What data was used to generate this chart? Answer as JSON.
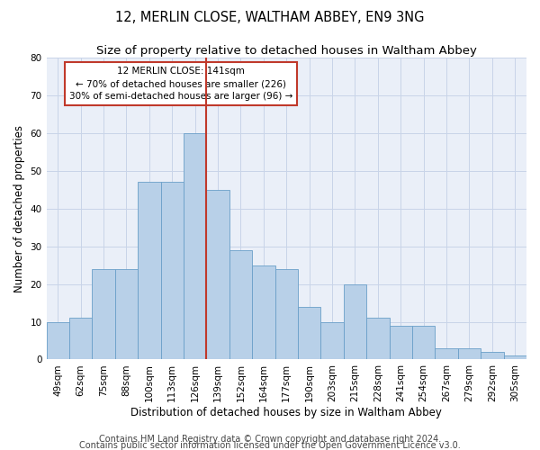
{
  "title": "12, MERLIN CLOSE, WALTHAM ABBEY, EN9 3NG",
  "subtitle": "Size of property relative to detached houses in Waltham Abbey",
  "xlabel": "Distribution of detached houses by size in Waltham Abbey",
  "ylabel": "Number of detached properties",
  "categories": [
    "49sqm",
    "62sqm",
    "75sqm",
    "88sqm",
    "100sqm",
    "113sqm",
    "126sqm",
    "139sqm",
    "152sqm",
    "164sqm",
    "177sqm",
    "190sqm",
    "203sqm",
    "215sqm",
    "228sqm",
    "241sqm",
    "254sqm",
    "267sqm",
    "279sqm",
    "292sqm",
    "305sqm"
  ],
  "values": [
    10,
    11,
    24,
    24,
    47,
    47,
    60,
    45,
    29,
    25,
    24,
    14,
    10,
    20,
    11,
    9,
    9,
    3,
    3,
    2,
    1
  ],
  "bar_color": "#b8d0e8",
  "bar_edge_color": "#6a9fc8",
  "vline_color": "#c0392b",
  "annotation_text": "12 MERLIN CLOSE: 141sqm\n← 70% of detached houses are smaller (226)\n30% of semi-detached houses are larger (96) →",
  "annotation_box_color": "#c0392b",
  "ylim": [
    0,
    80
  ],
  "yticks": [
    0,
    10,
    20,
    30,
    40,
    50,
    60,
    70,
    80
  ],
  "grid_color": "#c8d4e8",
  "bg_color": "#eaeff8",
  "footer1": "Contains HM Land Registry data © Crown copyright and database right 2024.",
  "footer2": "Contains public sector information licensed under the Open Government Licence v3.0.",
  "title_fontsize": 10.5,
  "subtitle_fontsize": 9.5,
  "axis_label_fontsize": 8.5,
  "tick_fontsize": 7.5,
  "footer_fontsize": 7.0,
  "vline_index": 7
}
